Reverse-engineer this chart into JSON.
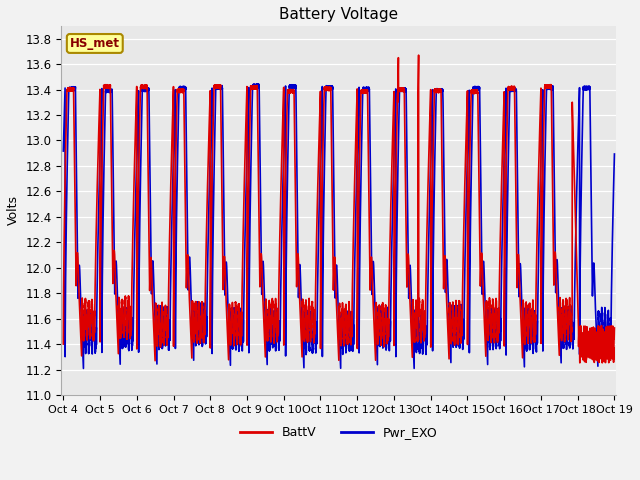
{
  "title": "Battery Voltage",
  "ylabel": "Volts",
  "ylim": [
    11.0,
    13.9
  ],
  "yticks": [
    11.0,
    11.2,
    11.4,
    11.6,
    11.8,
    12.0,
    12.2,
    12.4,
    12.6,
    12.8,
    13.0,
    13.2,
    13.4,
    13.6,
    13.8
  ],
  "x_tick_labels": [
    "Oct 4",
    "Oct 5",
    "Oct 6",
    "Oct 7",
    "Oct 8",
    "Oct 9",
    "Oct 10",
    "Oct 11",
    "Oct 12",
    "Oct 13",
    "Oct 14",
    "Oct 15",
    "Oct 16",
    "Oct 17",
    "Oct 18",
    "Oct 19"
  ],
  "batt_color": "#dd0000",
  "exo_color": "#0000cc",
  "legend_label_batt": "BattV",
  "legend_label_exo": "Pwr_EXO",
  "station_label": "HS_met",
  "plot_bg_color": "#e8e8e8",
  "fig_bg_color": "#f2f2f2",
  "n_days": 15,
  "title_fontsize": 11,
  "axis_fontsize": 9,
  "tick_fontsize": 8.5
}
